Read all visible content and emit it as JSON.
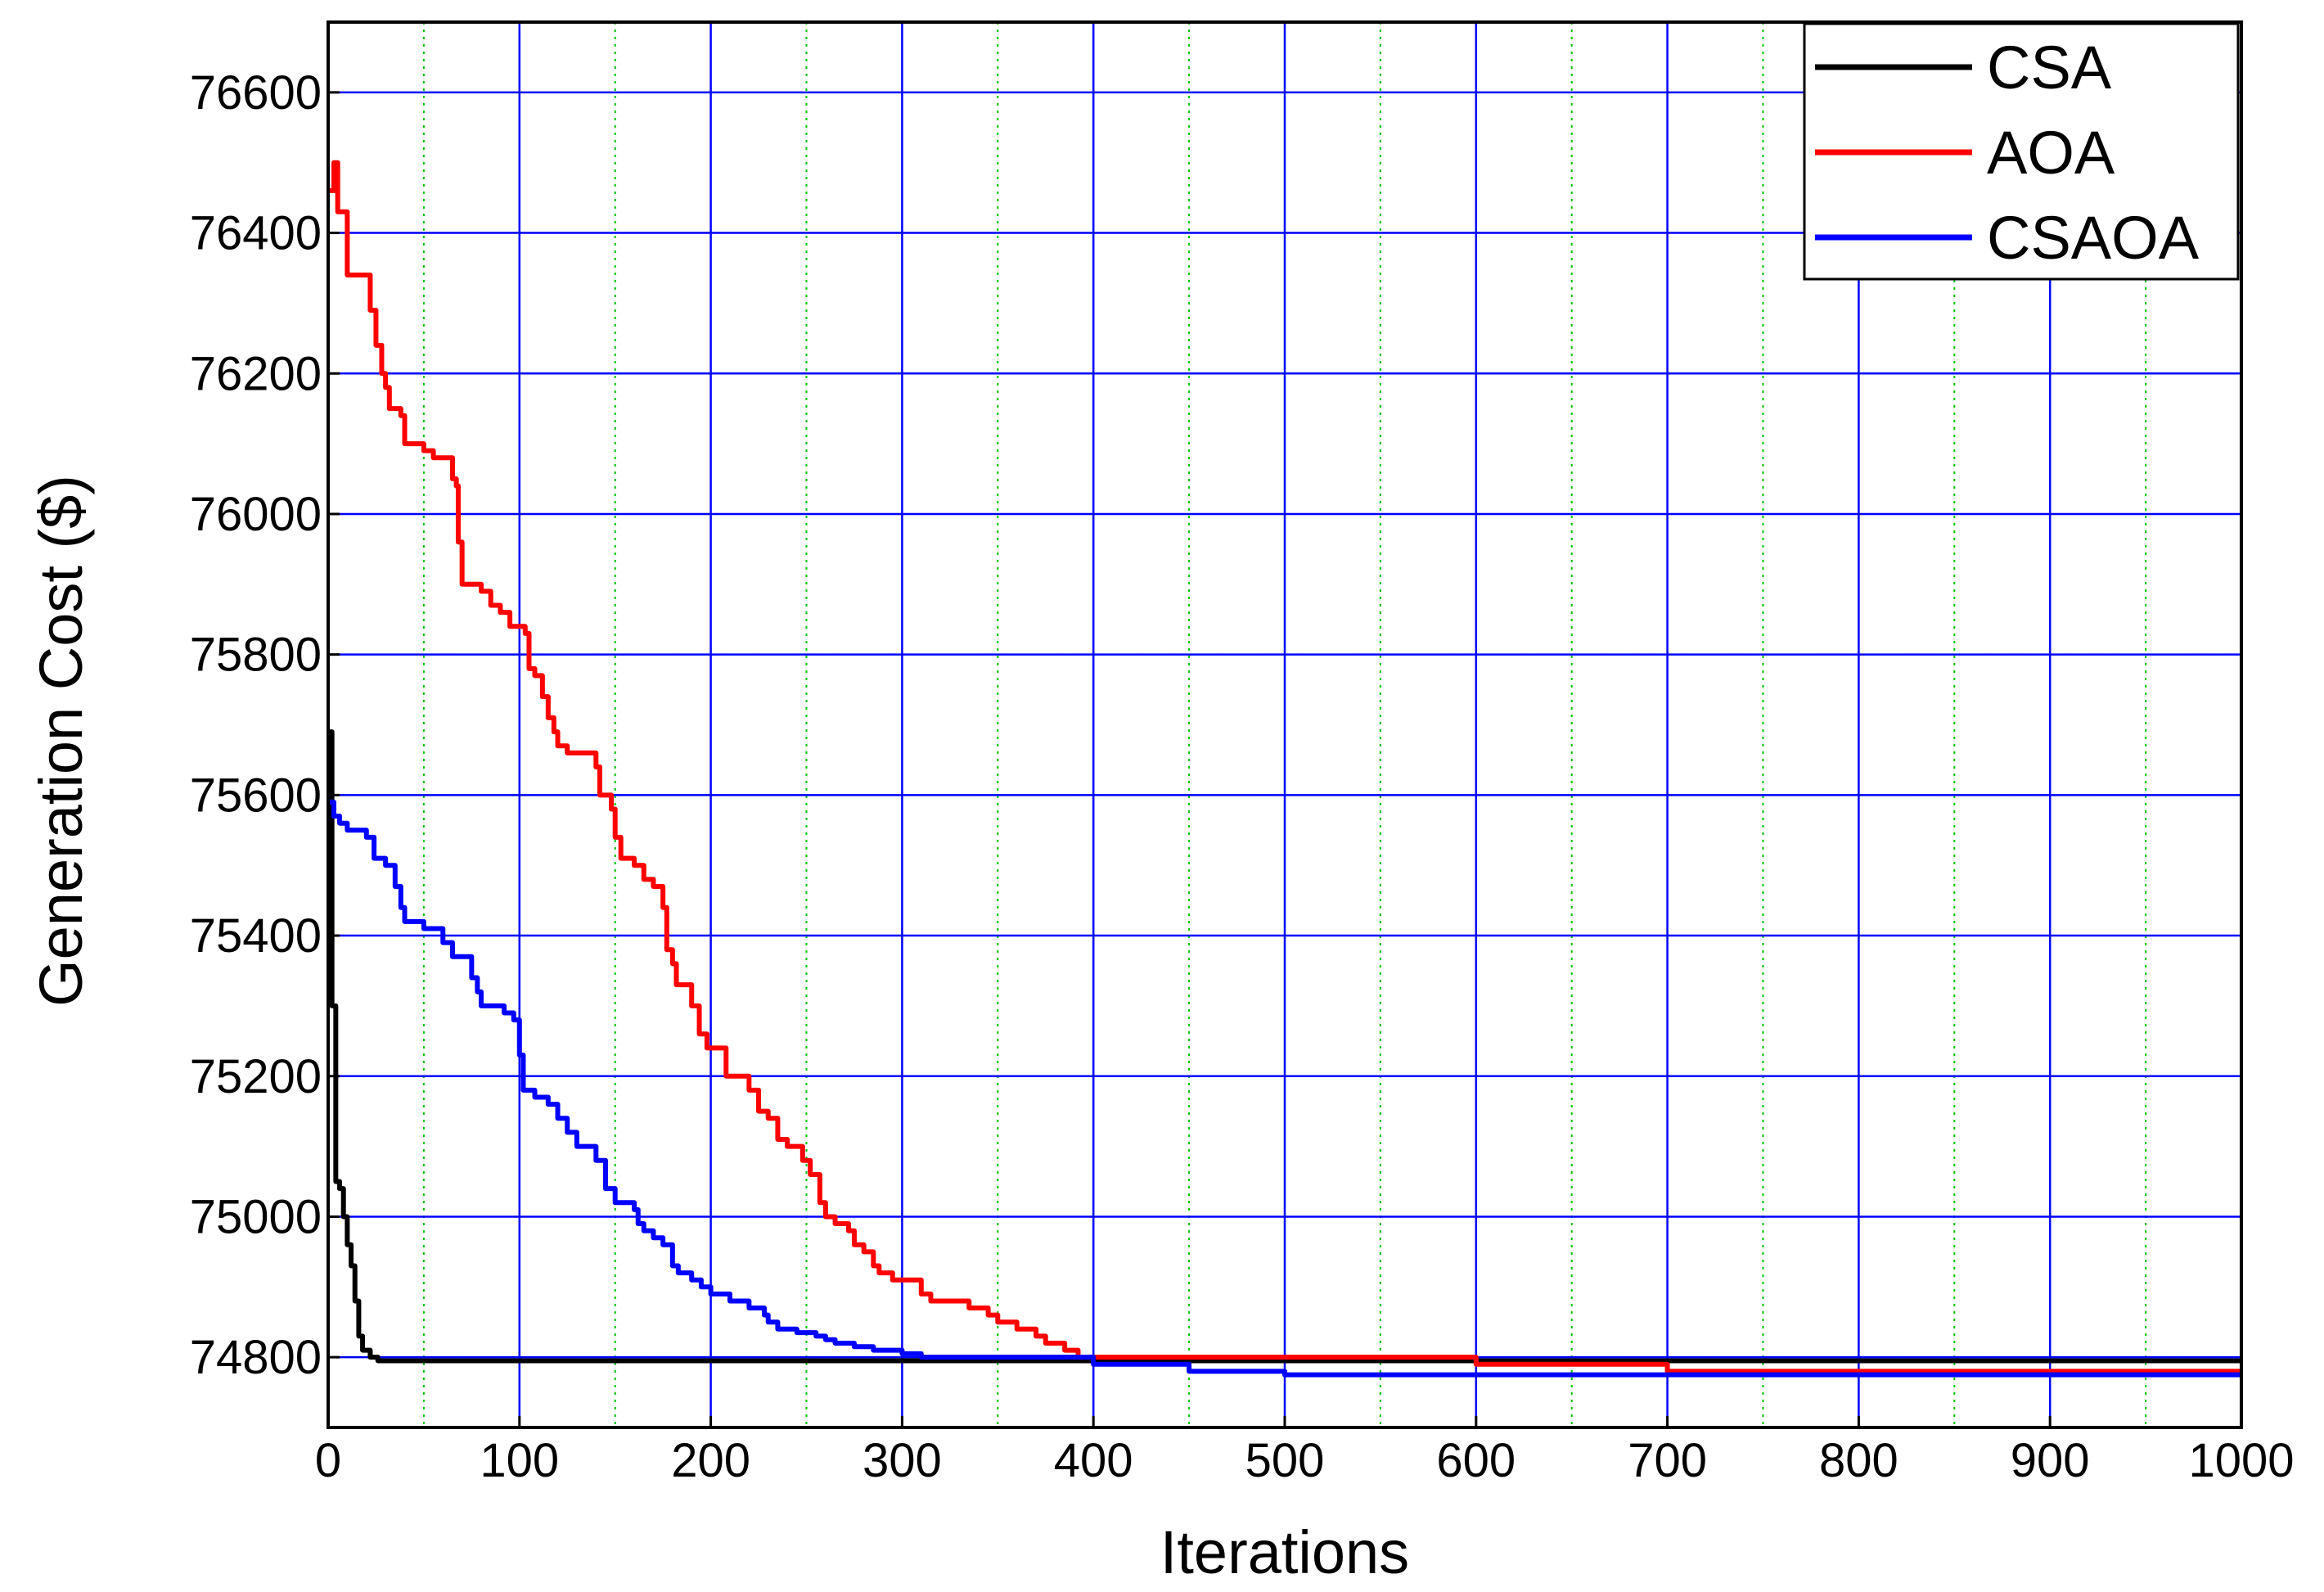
{
  "chart_data": {
    "type": "line",
    "title": "",
    "xlabel": "Iterations",
    "ylabel": "Generation Cost ($)",
    "xlim": [
      0,
      1000
    ],
    "ylim": [
      74700,
      76700
    ],
    "x_ticks": [
      0,
      100,
      200,
      300,
      400,
      500,
      600,
      700,
      800,
      900,
      1000
    ],
    "y_ticks": [
      74800,
      75000,
      75200,
      75400,
      75600,
      75800,
      76000,
      76200,
      76400,
      76600
    ],
    "grid": {
      "major": true,
      "minor": true,
      "major_color": "#0000ff",
      "minor_color": "#00c000"
    },
    "legend": {
      "position": "top-right"
    },
    "series": [
      {
        "name": "CSA",
        "color": "#000000",
        "points": [
          [
            0,
            75690
          ],
          [
            2,
            75300
          ],
          [
            4,
            75050
          ],
          [
            6,
            75040
          ],
          [
            8,
            75000
          ],
          [
            10,
            74960
          ],
          [
            12,
            74930
          ],
          [
            14,
            74880
          ],
          [
            16,
            74830
          ],
          [
            18,
            74810
          ],
          [
            22,
            74800
          ],
          [
            26,
            74795
          ],
          [
            100,
            74795
          ],
          [
            400,
            74795
          ],
          [
            1000,
            74795
          ]
        ]
      },
      {
        "name": "AOA",
        "color": "#ff0000",
        "points": [
          [
            0,
            76460
          ],
          [
            3,
            76500
          ],
          [
            5,
            76430
          ],
          [
            8,
            76430
          ],
          [
            10,
            76340
          ],
          [
            20,
            76340
          ],
          [
            22,
            76290
          ],
          [
            25,
            76240
          ],
          [
            28,
            76200
          ],
          [
            30,
            76180
          ],
          [
            32,
            76150
          ],
          [
            38,
            76140
          ],
          [
            40,
            76100
          ],
          [
            50,
            76090
          ],
          [
            55,
            76080
          ],
          [
            62,
            76080
          ],
          [
            65,
            76050
          ],
          [
            67,
            76040
          ],
          [
            68,
            75960
          ],
          [
            70,
            75900
          ],
          [
            80,
            75890
          ],
          [
            85,
            75870
          ],
          [
            90,
            75860
          ],
          [
            95,
            75840
          ],
          [
            103,
            75830
          ],
          [
            105,
            75780
          ],
          [
            108,
            75770
          ],
          [
            112,
            75740
          ],
          [
            115,
            75710
          ],
          [
            118,
            75690
          ],
          [
            120,
            75670
          ],
          [
            125,
            75660
          ],
          [
            135,
            75660
          ],
          [
            140,
            75640
          ],
          [
            142,
            75600
          ],
          [
            148,
            75580
          ],
          [
            150,
            75540
          ],
          [
            153,
            75510
          ],
          [
            160,
            75500
          ],
          [
            165,
            75480
          ],
          [
            170,
            75470
          ],
          [
            175,
            75440
          ],
          [
            177,
            75380
          ],
          [
            180,
            75360
          ],
          [
            182,
            75330
          ],
          [
            188,
            75330
          ],
          [
            190,
            75300
          ],
          [
            194,
            75260
          ],
          [
            198,
            75240
          ],
          [
            205,
            75240
          ],
          [
            208,
            75200
          ],
          [
            215,
            75200
          ],
          [
            220,
            75180
          ],
          [
            225,
            75150
          ],
          [
            230,
            75140
          ],
          [
            235,
            75110
          ],
          [
            240,
            75100
          ],
          [
            248,
            75080
          ],
          [
            252,
            75060
          ],
          [
            257,
            75020
          ],
          [
            260,
            75000
          ],
          [
            265,
            74990
          ],
          [
            272,
            74980
          ],
          [
            275,
            74960
          ],
          [
            280,
            74950
          ],
          [
            285,
            74930
          ],
          [
            288,
            74920
          ],
          [
            295,
            74910
          ],
          [
            305,
            74910
          ],
          [
            310,
            74890
          ],
          [
            315,
            74880
          ],
          [
            325,
            74880
          ],
          [
            335,
            74870
          ],
          [
            345,
            74860
          ],
          [
            350,
            74850
          ],
          [
            360,
            74840
          ],
          [
            370,
            74830
          ],
          [
            375,
            74820
          ],
          [
            380,
            74820
          ],
          [
            385,
            74810
          ],
          [
            392,
            74800
          ],
          [
            400,
            74800
          ],
          [
            500,
            74800
          ],
          [
            600,
            74790
          ],
          [
            700,
            74780
          ],
          [
            800,
            74780
          ],
          [
            1000,
            74780
          ]
        ]
      },
      {
        "name": "CSAOA",
        "color": "#0000ff",
        "points": [
          [
            0,
            75590
          ],
          [
            3,
            75570
          ],
          [
            6,
            75560
          ],
          [
            10,
            75550
          ],
          [
            20,
            75540
          ],
          [
            24,
            75510
          ],
          [
            30,
            75500
          ],
          [
            35,
            75470
          ],
          [
            38,
            75440
          ],
          [
            40,
            75420
          ],
          [
            50,
            75410
          ],
          [
            60,
            75390
          ],
          [
            65,
            75370
          ],
          [
            75,
            75340
          ],
          [
            78,
            75320
          ],
          [
            80,
            75300
          ],
          [
            90,
            75300
          ],
          [
            92,
            75290
          ],
          [
            97,
            75280
          ],
          [
            100,
            75230
          ],
          [
            102,
            75180
          ],
          [
            108,
            75170
          ],
          [
            115,
            75160
          ],
          [
            120,
            75140
          ],
          [
            125,
            75120
          ],
          [
            130,
            75100
          ],
          [
            140,
            75080
          ],
          [
            145,
            75040
          ],
          [
            150,
            75020
          ],
          [
            160,
            75010
          ],
          [
            162,
            74990
          ],
          [
            165,
            74980
          ],
          [
            170,
            74970
          ],
          [
            175,
            74960
          ],
          [
            180,
            74930
          ],
          [
            183,
            74920
          ],
          [
            190,
            74910
          ],
          [
            195,
            74900
          ],
          [
            200,
            74890
          ],
          [
            210,
            74880
          ],
          [
            220,
            74870
          ],
          [
            228,
            74860
          ],
          [
            230,
            74850
          ],
          [
            235,
            74840
          ],
          [
            245,
            74835
          ],
          [
            255,
            74830
          ],
          [
            260,
            74825
          ],
          [
            265,
            74820
          ],
          [
            275,
            74815
          ],
          [
            285,
            74810
          ],
          [
            300,
            74805
          ],
          [
            310,
            74800
          ],
          [
            400,
            74790
          ],
          [
            450,
            74780
          ],
          [
            500,
            74775
          ],
          [
            600,
            74775
          ],
          [
            1000,
            74775
          ]
        ]
      }
    ]
  }
}
